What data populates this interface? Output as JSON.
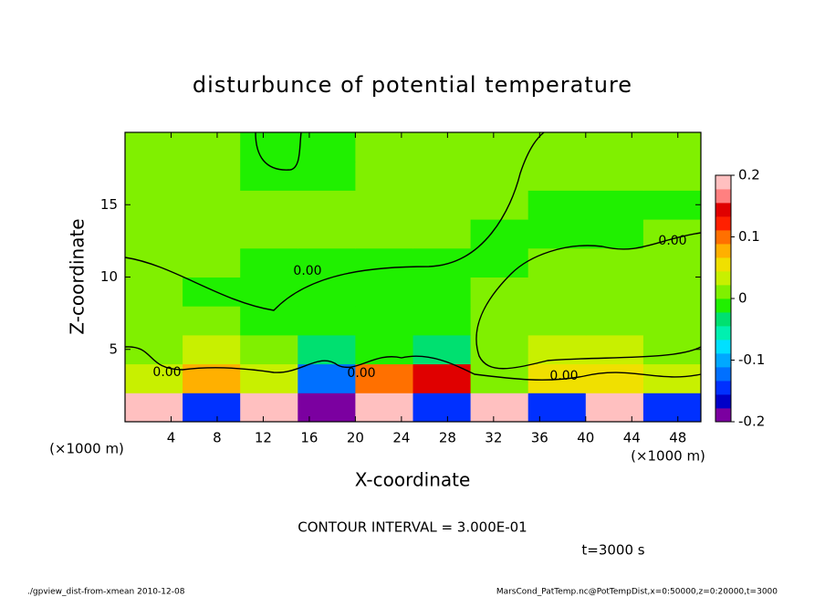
{
  "chart_data": {
    "type": "contour",
    "title": "disturbunce of potential temperature",
    "x_label": "X-coordinate",
    "y_label": "Z-coordinate",
    "x_unit": "(×1000 m)",
    "y_unit": "(×1000 m)",
    "xlim": [
      0,
      50
    ],
    "ylim": [
      0,
      20
    ],
    "xticks": [
      4,
      8,
      12,
      16,
      20,
      24,
      28,
      32,
      36,
      40,
      44,
      48
    ],
    "yticks": [
      5,
      10,
      15
    ],
    "x": [
      2.5,
      7.5,
      12.5,
      17.5,
      22.5,
      27.5,
      32.5,
      37.5,
      42.5,
      47.5
    ],
    "y": [
      1,
      3,
      5,
      7,
      9,
      11,
      13,
      15,
      17,
      19
    ],
    "z": [
      [
        0.2,
        -0.15,
        0.2,
        -0.2,
        0.2,
        -0.15,
        0.2,
        -0.15,
        0.2,
        -0.15
      ],
      [
        0.04,
        0.08,
        0.03,
        -0.12,
        0.1,
        0.15,
        0.02,
        0.05,
        0.05,
        0.03
      ],
      [
        0.02,
        0.03,
        0.01,
        -0.03,
        -0.02,
        -0.03,
        0.01,
        0.03,
        0.03,
        0.02
      ],
      [
        0.01,
        0.005,
        -0.005,
        -0.01,
        -0.005,
        -0.005,
        0.005,
        0.005,
        0.005,
        0.01
      ],
      [
        0.005,
        -0.005,
        -0.005,
        -0.005,
        -0.005,
        -0.005,
        0.005,
        0.005,
        0.005,
        0.005
      ],
      [
        0.005,
        0.005,
        -0.005,
        -0.005,
        -0.005,
        -0.005,
        -0.005,
        0.005,
        0.005,
        0.005
      ],
      [
        0.005,
        0.005,
        0.005,
        0.005,
        0.005,
        0.005,
        -0.005,
        -0.005,
        -0.005,
        0.005
      ],
      [
        0.005,
        0.005,
        0.005,
        0.005,
        0.005,
        0.005,
        0.005,
        -0.005,
        -0.005,
        -0.005
      ],
      [
        0.005,
        0.005,
        -0.005,
        -0.005,
        0.005,
        0.005,
        0.005,
        0.005,
        0.005,
        0.005
      ],
      [
        0.005,
        0.005,
        -0.005,
        -0.005,
        0.005,
        0.005,
        0.005,
        0.005,
        0.005,
        0.005
      ]
    ],
    "colorbar": {
      "lim": [
        -0.2,
        0.2
      ],
      "ticks": [
        0.2,
        0.1,
        0,
        -0.1,
        -0.2
      ],
      "colors": [
        "#7b00a0",
        "#0000c8",
        "#0030ff",
        "#0070ff",
        "#00a8ff",
        "#00e0ff",
        "#00f0b0",
        "#00e070",
        "#20f000",
        "#80f000",
        "#c8f000",
        "#f0e000",
        "#ffb000",
        "#ff7000",
        "#ff2000",
        "#e00000",
        "#ff8080",
        "#ffc0c0"
      ]
    },
    "contour_labels": [
      "0.00",
      "0.00",
      "0.00",
      "0.00",
      "0.00"
    ],
    "annotation": "CONTOUR INTERVAL = 3.000E-01",
    "time_label": "t=3000 s",
    "footer_left": "./gpview_dist-from-xmean  2010-12-08",
    "footer_right": "MarsCond_PatTemp.nc@PotTempDist,x=0:50000,z=0:20000,t=3000"
  }
}
